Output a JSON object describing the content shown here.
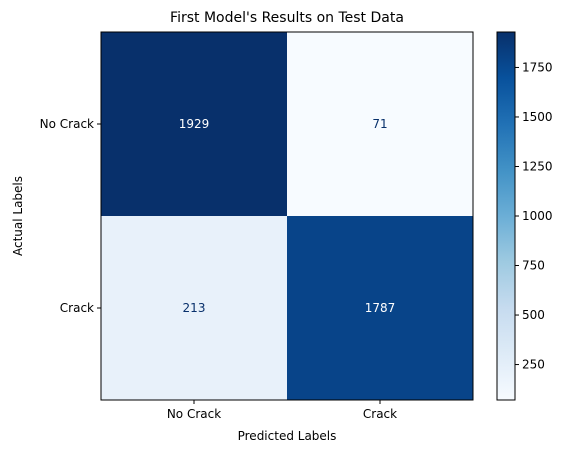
{
  "chart_data": {
    "type": "heatmap",
    "title": "First Model's Results on Test Data",
    "xlabel": "Predicted Labels",
    "ylabel": "Actual Labels",
    "x_categories": [
      "No Crack",
      "Crack"
    ],
    "y_categories": [
      "No Crack",
      "Crack"
    ],
    "values": [
      [
        1929,
        71
      ],
      [
        213,
        1787
      ]
    ],
    "colormap": "Blues",
    "color_range": [
      71,
      1929
    ],
    "colorbar_ticks": [
      250,
      500,
      750,
      1000,
      1250,
      1500,
      1750
    ],
    "grid": false,
    "text_colors": {
      "dark_cell": "#ffffff",
      "light_cell": "#08306b"
    }
  }
}
